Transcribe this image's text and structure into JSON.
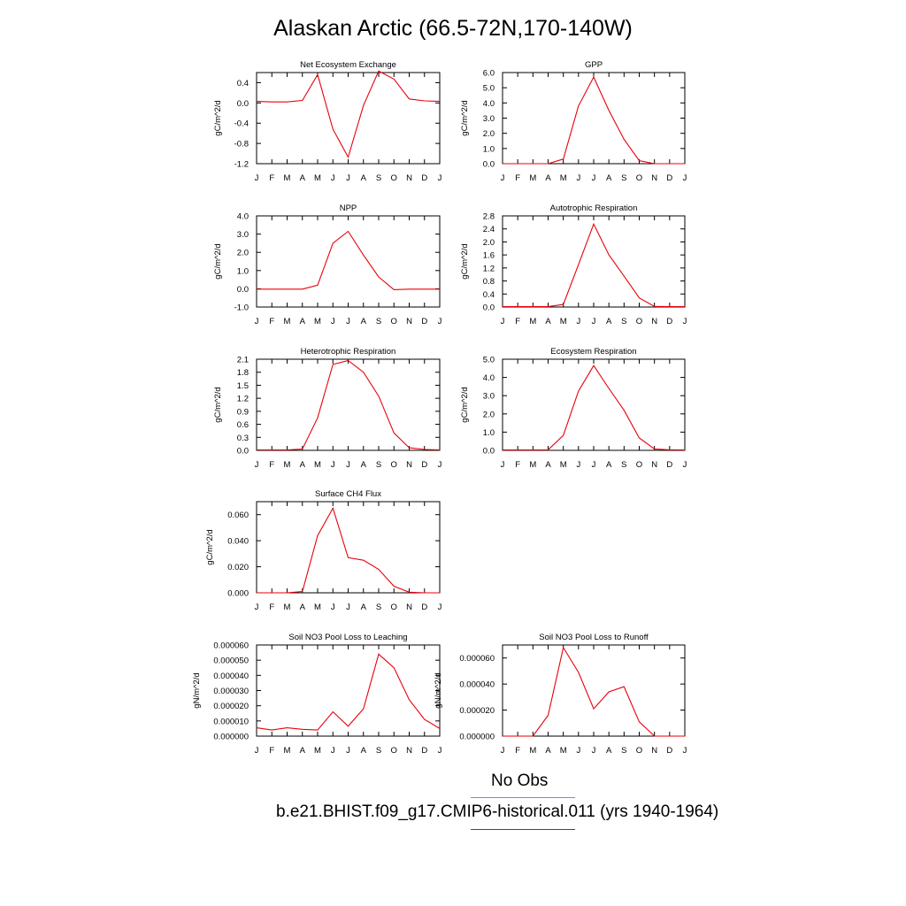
{
  "title": "Alaskan Arctic (66.5-72N,170-140W)",
  "colors": {
    "model_line": "#e8000b",
    "obs_line": "#7f7fff"
  },
  "legend": {
    "obs_label": "No Obs",
    "model_label": "b.e21.BHIST.f09_g17.CMIP6-historical.011 (yrs 1940-1964)"
  },
  "chart_data": [
    {
      "type": "line",
      "title": "Net Ecosystem Exchange",
      "ylabel": "gC/m^2/d",
      "categories": [
        "J",
        "F",
        "M",
        "A",
        "M",
        "J",
        "J",
        "A",
        "S",
        "O",
        "N",
        "D",
        "J"
      ],
      "ylim": [
        -1.2,
        0.6
      ],
      "yticks": [
        "0.4",
        "0.0",
        "-0.4",
        "-0.8",
        "-1.2"
      ],
      "ytick_values": [
        0.4,
        0.0,
        -0.4,
        -0.8,
        -1.2
      ],
      "values": [
        0.03,
        0.02,
        0.02,
        0.05,
        0.56,
        -0.52,
        -1.07,
        -0.05,
        0.63,
        0.47,
        0.08,
        0.04,
        0.03
      ]
    },
    {
      "type": "line",
      "title": "GPP",
      "ylabel": "gC/m^2/d",
      "categories": [
        "J",
        "F",
        "M",
        "A",
        "M",
        "J",
        "J",
        "A",
        "S",
        "O",
        "N",
        "D",
        "J"
      ],
      "ylim": [
        0,
        6.0
      ],
      "yticks": [
        "6.0",
        "5.0",
        "4.0",
        "3.0",
        "2.0",
        "1.0",
        "0.0"
      ],
      "ytick_values": [
        6,
        5,
        4,
        3,
        2,
        1,
        0
      ],
      "values": [
        0,
        0,
        0,
        0,
        0.3,
        3.8,
        5.7,
        3.5,
        1.6,
        0.2,
        0,
        0,
        0
      ]
    },
    {
      "type": "line",
      "title": "NPP",
      "ylabel": "gC/m^2/d",
      "categories": [
        "J",
        "F",
        "M",
        "A",
        "M",
        "J",
        "J",
        "A",
        "S",
        "O",
        "N",
        "D",
        "J"
      ],
      "ylim": [
        -1.0,
        4.0
      ],
      "yticks": [
        "4.0",
        "3.0",
        "2.0",
        "1.0",
        "0.0",
        "-1.0"
      ],
      "ytick_values": [
        4,
        3,
        2,
        1,
        0,
        -1
      ],
      "values": [
        -0.02,
        -0.02,
        -0.02,
        -0.02,
        0.2,
        2.5,
        3.15,
        1.85,
        0.65,
        -0.05,
        -0.02,
        -0.02,
        -0.02
      ]
    },
    {
      "type": "line",
      "title": "Autotrophic Respiration",
      "ylabel": "gC/m^2/d",
      "categories": [
        "J",
        "F",
        "M",
        "A",
        "M",
        "J",
        "J",
        "A",
        "S",
        "O",
        "N",
        "D",
        "J"
      ],
      "ylim": [
        0,
        2.8
      ],
      "yticks": [
        "2.8",
        "2.4",
        "2.0",
        "1.6",
        "1.2",
        "0.8",
        "0.4",
        "0.0"
      ],
      "ytick_values": [
        2.8,
        2.4,
        2.0,
        1.6,
        1.2,
        0.8,
        0.4,
        0.0
      ],
      "values": [
        0.01,
        0.01,
        0.01,
        0.01,
        0.08,
        1.3,
        2.55,
        1.6,
        0.95,
        0.28,
        0.02,
        0.01,
        0.01
      ]
    },
    {
      "type": "line",
      "title": "Heterotrophic Respiration",
      "ylabel": "gC/m^2/d",
      "categories": [
        "J",
        "F",
        "M",
        "A",
        "M",
        "J",
        "J",
        "A",
        "S",
        "O",
        "N",
        "D",
        "J"
      ],
      "ylim": [
        0,
        2.1
      ],
      "yticks": [
        "2.1",
        "1.8",
        "1.5",
        "1.2",
        "0.9",
        "0.6",
        "0.3",
        "0.0"
      ],
      "ytick_values": [
        2.1,
        1.8,
        1.5,
        1.2,
        0.9,
        0.6,
        0.3,
        0.0
      ],
      "values": [
        0.01,
        0.01,
        0.01,
        0.03,
        0.75,
        1.98,
        2.07,
        1.8,
        1.25,
        0.4,
        0.06,
        0.02,
        0.01
      ]
    },
    {
      "type": "line",
      "title": "Ecosystem Respiration",
      "ylabel": "gC/m^2/d",
      "categories": [
        "J",
        "F",
        "M",
        "A",
        "M",
        "J",
        "J",
        "A",
        "S",
        "O",
        "N",
        "D",
        "J"
      ],
      "ylim": [
        0,
        5.0
      ],
      "yticks": [
        "5.0",
        "4.0",
        "3.0",
        "2.0",
        "1.0",
        "0.0"
      ],
      "ytick_values": [
        5,
        4,
        3,
        2,
        1,
        0
      ],
      "values": [
        0.02,
        0.02,
        0.02,
        0.03,
        0.82,
        3.25,
        4.65,
        3.4,
        2.2,
        0.68,
        0.08,
        0.03,
        0.02
      ]
    },
    {
      "type": "line",
      "title": "Surface CH4 Flux",
      "ylabel": "gC/m^2/d",
      "categories": [
        "J",
        "F",
        "M",
        "A",
        "M",
        "J",
        "J",
        "A",
        "S",
        "O",
        "N",
        "D",
        "J"
      ],
      "ylim": [
        0,
        0.07
      ],
      "yticks": [
        "0.060",
        "0.040",
        "0.020",
        "0.000"
      ],
      "ytick_values": [
        0.06,
        0.04,
        0.02,
        0.0
      ],
      "values": [
        0.0,
        0.0,
        0.0,
        0.001,
        0.044,
        0.065,
        0.027,
        0.025,
        0.018,
        0.005,
        0.0005,
        0.0,
        0.0
      ]
    },
    {
      "type": "line",
      "title": "Soil NO3 Pool Loss to Leaching",
      "ylabel": "gN/m^2/d",
      "categories": [
        "J",
        "F",
        "M",
        "A",
        "M",
        "J",
        "J",
        "A",
        "S",
        "O",
        "N",
        "D",
        "J"
      ],
      "ylim": [
        0,
        6e-05
      ],
      "yticks": [
        "0.000060",
        "0.000050",
        "0.000040",
        "0.000030",
        "0.000020",
        "0.000010",
        "0.000000"
      ],
      "ytick_values": [
        6e-05,
        5e-05,
        4e-05,
        3e-05,
        2e-05,
        1e-05,
        0.0
      ],
      "values": [
        5.5e-06,
        4e-06,
        5.5e-06,
        4.5e-06,
        4e-06,
        1.6e-05,
        6.5e-06,
        1.8e-05,
        5.4e-05,
        4.5e-05,
        2.4e-05,
        1.1e-05,
        5e-06
      ]
    },
    {
      "type": "line",
      "title": "Soil NO3 Pool Loss to Runoff",
      "ylabel": "gN/m^2/d",
      "categories": [
        "J",
        "F",
        "M",
        "A",
        "M",
        "J",
        "J",
        "A",
        "S",
        "O",
        "N",
        "D",
        "J"
      ],
      "ylim": [
        0,
        7e-05
      ],
      "yticks": [
        "0.000060",
        "0.000040",
        "0.000020",
        "0.000000"
      ],
      "ytick_values": [
        6e-05,
        4e-05,
        2e-05,
        0.0
      ],
      "values": [
        0.0,
        0.0,
        0.0,
        1.6e-05,
        6.8e-05,
        4.9e-05,
        2.1e-05,
        3.4e-05,
        3.8e-05,
        1.1e-05,
        0.0,
        0.0,
        0.0
      ]
    }
  ]
}
